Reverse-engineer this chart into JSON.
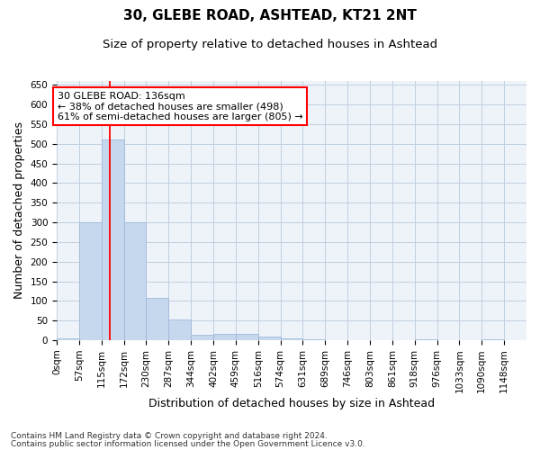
{
  "title": "30, GLEBE ROAD, ASHTEAD, KT21 2NT",
  "subtitle": "Size of property relative to detached houses in Ashtead",
  "xlabel": "Distribution of detached houses by size in Ashtead",
  "ylabel": "Number of detached properties",
  "bar_labels": [
    "0sqm",
    "57sqm",
    "115sqm",
    "172sqm",
    "230sqm",
    "287sqm",
    "344sqm",
    "402sqm",
    "459sqm",
    "516sqm",
    "574sqm",
    "631sqm",
    "689sqm",
    "746sqm",
    "803sqm",
    "861sqm",
    "918sqm",
    "976sqm",
    "1033sqm",
    "1090sqm",
    "1148sqm"
  ],
  "bar_values": [
    5,
    300,
    510,
    300,
    108,
    52,
    13,
    15,
    15,
    10,
    5,
    2,
    1,
    1,
    1,
    1,
    3,
    1,
    1,
    3,
    0
  ],
  "bar_color": "#c5d8ee",
  "bar_edge_color": "#a0b8d8",
  "ylim": [
    0,
    660
  ],
  "yticks": [
    0,
    50,
    100,
    150,
    200,
    250,
    300,
    350,
    400,
    450,
    500,
    550,
    600,
    650
  ],
  "red_line_x": 136,
  "bin_width": 57,
  "annotation_line1": "30 GLEBE ROAD: 136sqm",
  "annotation_line2": "← 38% of detached houses are smaller (498)",
  "annotation_line3": "61% of semi-detached houses are larger (805) →",
  "footnote1": "Contains HM Land Registry data © Crown copyright and database right 2024.",
  "footnote2": "Contains public sector information licensed under the Open Government Licence v3.0.",
  "title_fontsize": 11,
  "subtitle_fontsize": 9.5,
  "axis_label_fontsize": 9,
  "tick_fontsize": 7.5,
  "annotation_fontsize": 8,
  "footnote_fontsize": 6.5,
  "background_color": "#ffffff",
  "plot_bg_color": "#eef3f9",
  "grid_color": "#c0cfdf"
}
